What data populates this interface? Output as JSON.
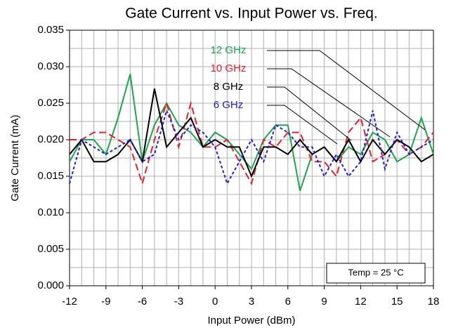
{
  "chart_data": {
    "type": "line",
    "title": "Gate Current vs. Input Power vs. Freq.",
    "x_label": "Input Power (dBm)",
    "y_label": "Gate Current (mA)",
    "annotation": "Temp = 25 °C",
    "x": [
      -12,
      -11,
      -10,
      -9,
      -8,
      -7,
      -6,
      -5,
      -4,
      -3,
      -2,
      -1,
      0,
      1,
      2,
      3,
      4,
      5,
      6,
      7,
      8,
      9,
      10,
      11,
      12,
      13,
      14,
      15,
      16,
      17,
      18
    ],
    "series": [
      {
        "name": "12 GHz",
        "color": "#1aa84f",
        "line_style": "solid",
        "values": [
          0.017,
          0.02,
          0.02,
          0.018,
          0.023,
          0.029,
          0.017,
          0.022,
          0.025,
          0.022,
          0.021,
          0.019,
          0.021,
          0.02,
          0.018,
          0.016,
          0.02,
          0.022,
          0.022,
          0.013,
          0.018,
          0.019,
          0.017,
          0.019,
          0.018,
          0.021,
          0.02,
          0.017,
          0.018,
          0.023,
          0.018
        ]
      },
      {
        "name": "10 GHz",
        "color": "#e8202a",
        "line_style": "dashed",
        "values": [
          0.02,
          0.02,
          0.021,
          0.021,
          0.02,
          0.019,
          0.014,
          0.02,
          0.025,
          0.019,
          0.025,
          0.019,
          0.019,
          0.02,
          0.017,
          0.014,
          0.02,
          0.019,
          0.021,
          0.021,
          0.017,
          0.017,
          0.015,
          0.021,
          0.023,
          0.017,
          0.018,
          0.02,
          0.018,
          0.019,
          0.021
        ]
      },
      {
        "name": "8 GHz",
        "color": "#000000",
        "line_style": "solid",
        "values": [
          0.018,
          0.02,
          0.017,
          0.017,
          0.018,
          0.02,
          0.017,
          0.027,
          0.019,
          0.021,
          0.023,
          0.019,
          0.02,
          0.019,
          0.019,
          0.015,
          0.019,
          0.019,
          0.018,
          0.02,
          0.018,
          0.019,
          0.017,
          0.02,
          0.017,
          0.02,
          0.018,
          0.02,
          0.019,
          0.017,
          0.018
        ]
      },
      {
        "name": "6 GHz",
        "color": "#1f1fe0",
        "line_style": "dotted",
        "values": [
          0.014,
          0.02,
          0.019,
          0.018,
          0.019,
          0.02,
          0.017,
          0.018,
          0.024,
          0.02,
          0.022,
          0.021,
          0.019,
          0.014,
          0.017,
          0.02,
          0.017,
          0.022,
          0.021,
          0.019,
          0.019,
          0.015,
          0.018,
          0.015,
          0.017,
          0.024,
          0.016,
          0.021,
          0.018,
          0.019,
          0.02
        ]
      }
    ],
    "xlim": [
      -12,
      18
    ],
    "xticks": [
      -12,
      -9,
      -6,
      -3,
      0,
      3,
      6,
      9,
      12,
      15,
      18
    ],
    "ylim": [
      0,
      0.035
    ],
    "yticks": [
      {
        "value": 0,
        "label": "0.000"
      },
      {
        "value": 0.005,
        "label": "0.005"
      },
      {
        "value": 0.01,
        "label": "0.010"
      },
      {
        "value": 0.015,
        "label": "0.015"
      },
      {
        "value": 0.02,
        "label": "0.020"
      },
      {
        "value": 0.025,
        "label": "0.025"
      },
      {
        "value": 0.03,
        "label": "0.030"
      },
      {
        "value": 0.035,
        "label": "0.035"
      }
    ],
    "grid": true
  }
}
